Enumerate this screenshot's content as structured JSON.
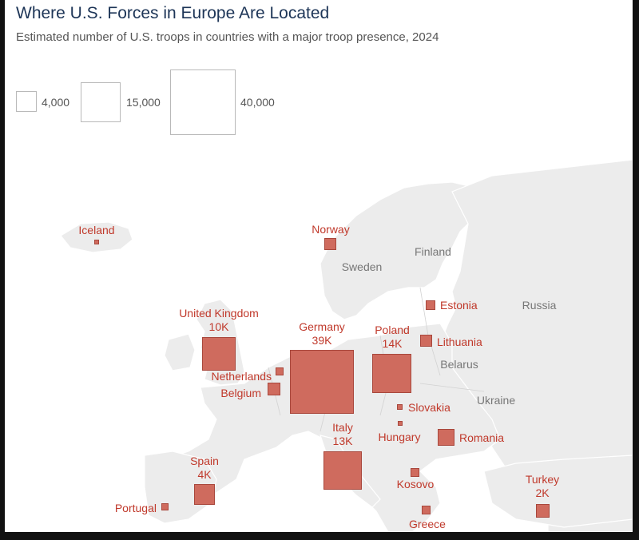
{
  "title": "Where U.S. Forces in Europe Are Located",
  "subtitle": "Estimated number of U.S. troops in countries with a major troop presence, 2024",
  "legend": [
    {
      "label": "4,000",
      "value": 4000
    },
    {
      "label": "15,000",
      "value": 15000
    },
    {
      "label": "40,000",
      "value": 40000
    }
  ],
  "troop_countries": [
    {
      "name": "Iceland",
      "value_label": ""
    },
    {
      "name": "Norway",
      "value_label": ""
    },
    {
      "name": "Estonia",
      "value_label": ""
    },
    {
      "name": "United Kingdom",
      "value_label": "10K"
    },
    {
      "name": "Germany",
      "value_label": "39K"
    },
    {
      "name": "Poland",
      "value_label": "14K"
    },
    {
      "name": "Lithuania",
      "value_label": ""
    },
    {
      "name": "Netherlands",
      "value_label": ""
    },
    {
      "name": "Belgium",
      "value_label": ""
    },
    {
      "name": "Slovakia",
      "value_label": ""
    },
    {
      "name": "Hungary",
      "value_label": ""
    },
    {
      "name": "Romania",
      "value_label": ""
    },
    {
      "name": "Italy",
      "value_label": "13K"
    },
    {
      "name": "Spain",
      "value_label": "4K"
    },
    {
      "name": "Kosovo",
      "value_label": ""
    },
    {
      "name": "Portugal",
      "value_label": ""
    },
    {
      "name": "Turkey",
      "value_label": "2K"
    },
    {
      "name": "Greece",
      "value_label": ""
    }
  ],
  "other_countries": [
    "Sweden",
    "Finland",
    "Russia",
    "Belarus",
    "Ukraine"
  ]
}
